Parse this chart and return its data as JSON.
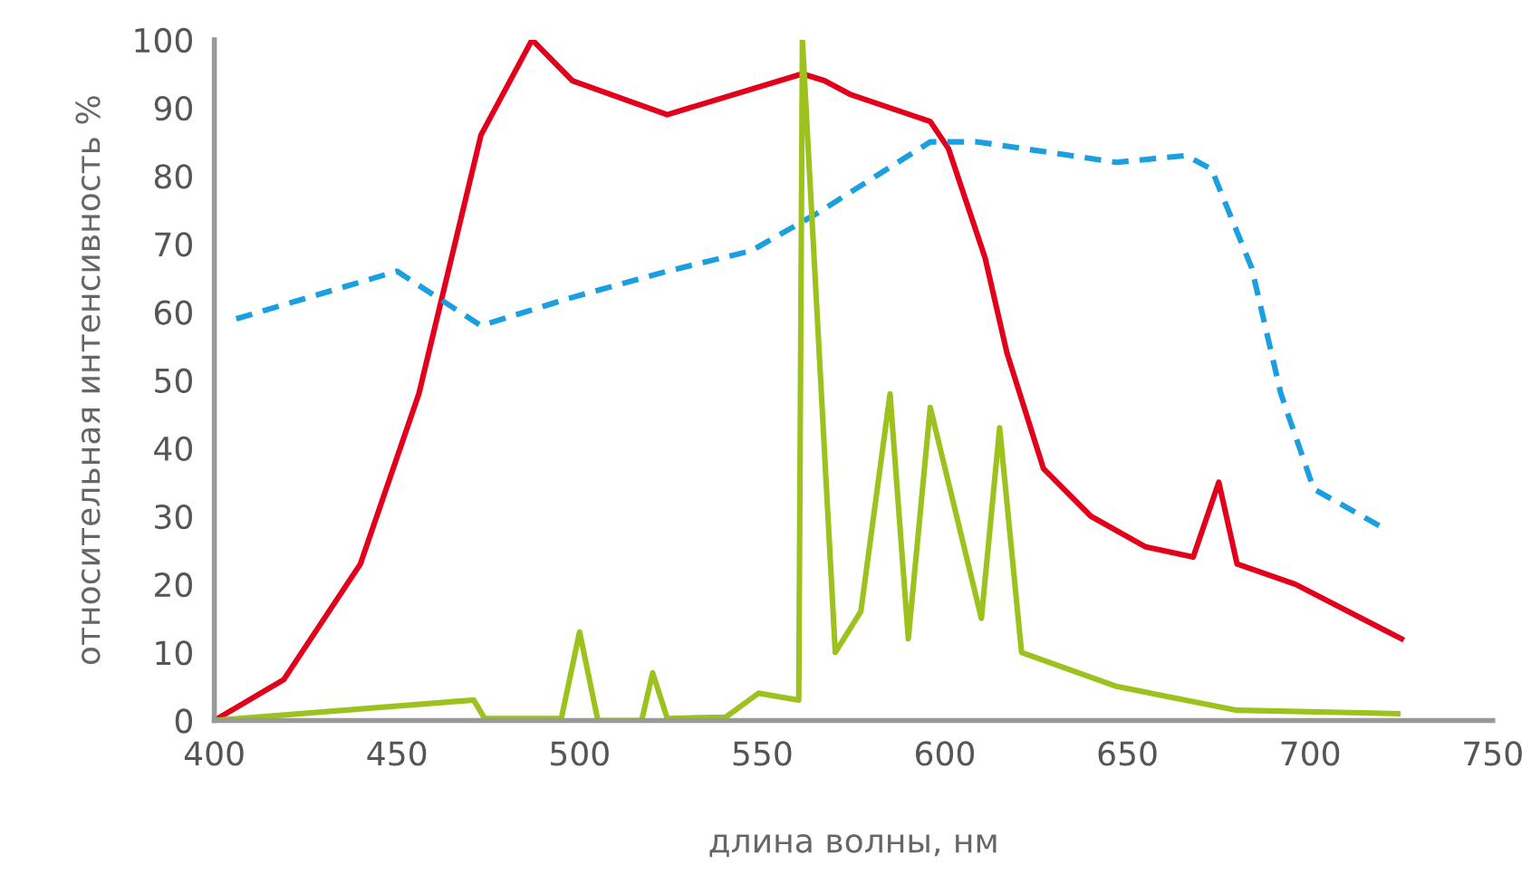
{
  "chart_data": {
    "type": "line",
    "xlabel": "длина волны, нм",
    "ylabel": "относительная интенсивность %",
    "xlim": [
      400,
      750
    ],
    "ylim": [
      0,
      100
    ],
    "xticks": [
      400,
      450,
      500,
      550,
      600,
      650,
      700,
      750
    ],
    "yticks": [
      0,
      10,
      20,
      30,
      40,
      50,
      60,
      70,
      80,
      90,
      100
    ],
    "grid": false,
    "legend": false,
    "marker": "none",
    "series": [
      {
        "color": "#e3001b",
        "line_style": "solid",
        "x": [
          400,
          419,
          440,
          456,
          473,
          487,
          498,
          524,
          561,
          567,
          574,
          596,
          601,
          611,
          617,
          627,
          640,
          655,
          668,
          675,
          680,
          696,
          725
        ],
        "values": [
          0,
          6,
          23,
          48,
          86,
          100,
          94,
          89,
          95,
          94,
          92,
          88,
          84,
          68,
          54,
          37,
          30,
          25.5,
          24,
          35,
          23,
          20,
          12
        ]
      },
      {
        "color": "#1a9fe0",
        "line_style": "dashed",
        "x": [
          406,
          450,
          473,
          497,
          524,
          547,
          565,
          596,
          609,
          647,
          666,
          673,
          684,
          692,
          701,
          721
        ],
        "values": [
          59,
          66,
          58,
          62,
          66,
          69,
          74.5,
          85,
          85,
          82,
          83,
          81,
          66.5,
          48,
          34,
          28
        ]
      },
      {
        "color": "#9dc21e",
        "line_style": "solid",
        "x": [
          400,
          471,
          474,
          495,
          500,
          505,
          517,
          520,
          524,
          540,
          549,
          560,
          561,
          570,
          577,
          585,
          590,
          596,
          610,
          615,
          621,
          647,
          680,
          724
        ],
        "values": [
          0,
          3,
          0.3,
          0.3,
          13,
          0,
          0,
          7,
          0.3,
          0.5,
          4,
          3,
          100,
          10,
          16,
          48,
          12,
          46,
          15,
          43,
          10,
          5,
          1.5,
          1
        ]
      }
    ]
  }
}
